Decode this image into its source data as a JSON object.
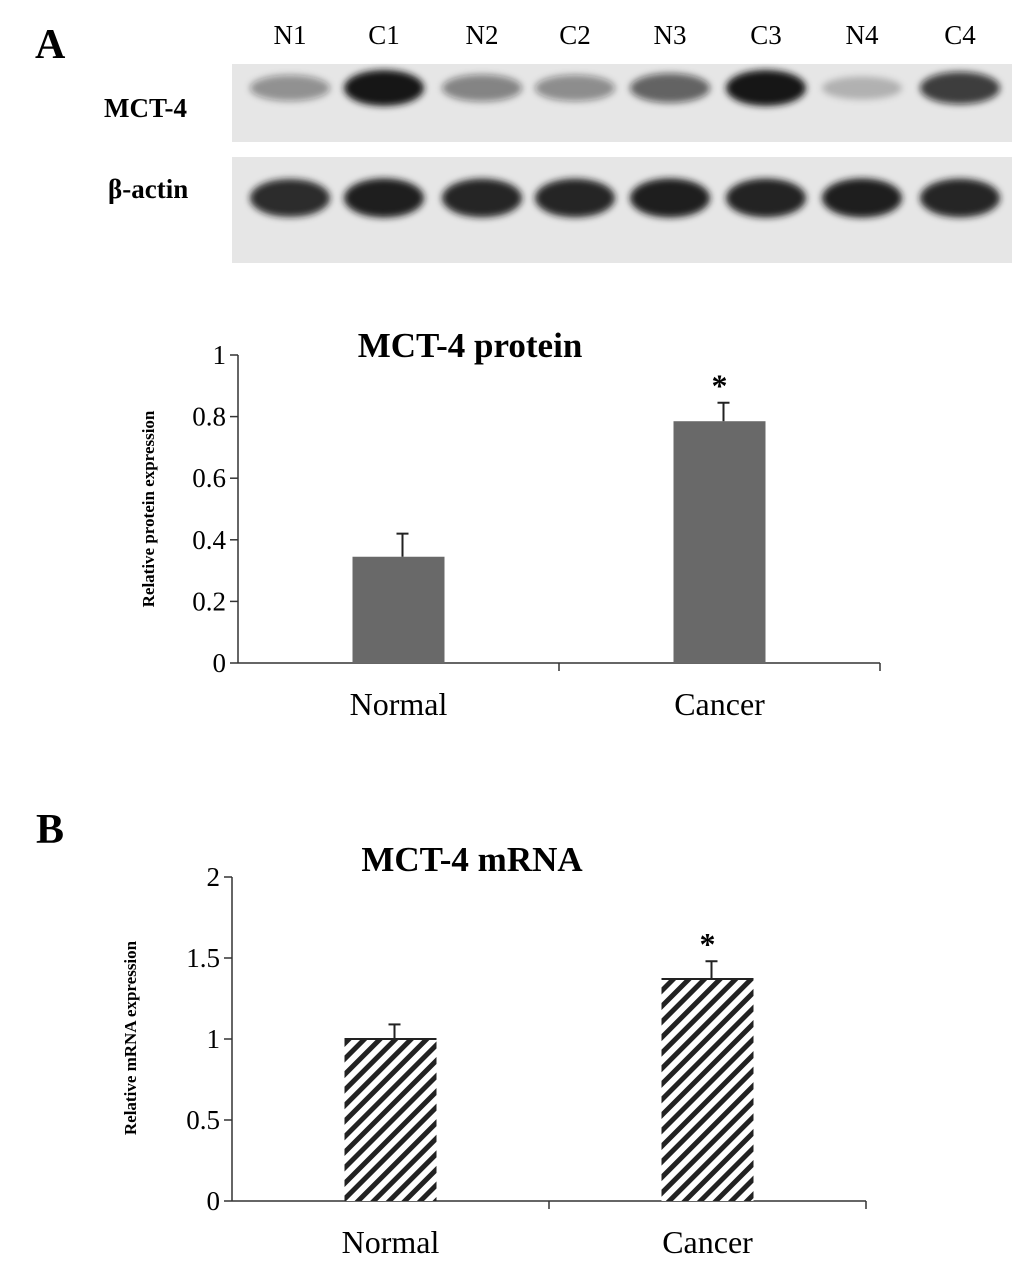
{
  "panels": [
    {
      "letter": "A"
    },
    {
      "letter": "B"
    }
  ],
  "blot": {
    "lanes": [
      "N1",
      "C1",
      "N2",
      "C2",
      "N3",
      "C3",
      "N4",
      "C4"
    ],
    "rows": [
      {
        "label": "MCT-4",
        "band_intensity": [
          0.3,
          1.0,
          0.38,
          0.33,
          0.55,
          1.0,
          0.1,
          0.75
        ]
      },
      {
        "label": "β-actin",
        "band_intensity": [
          0.88,
          0.95,
          0.92,
          0.92,
          0.95,
          0.93,
          0.95,
          0.92
        ]
      }
    ],
    "colors": {
      "background": "#e6e6e6",
      "band": "#141414"
    }
  },
  "chart_data": [
    {
      "type": "bar",
      "title": "MCT-4 protein",
      "categories": [
        "Normal",
        "Cancer"
      ],
      "values": [
        0.345,
        0.785
      ],
      "errors": [
        0.075,
        0.06
      ],
      "significance": [
        "",
        "*"
      ],
      "ylabel": "Relative protein expression",
      "ylim": [
        0,
        1
      ],
      "yticks": [
        0,
        0.2,
        0.4,
        0.6,
        0.8,
        1
      ],
      "ytick_labels": [
        "0",
        "0.2",
        "0.4",
        "0.6",
        "0.8",
        "1"
      ],
      "grid": false,
      "bar_fill": "solid",
      "bar_color": "#696969"
    },
    {
      "type": "bar",
      "title": "MCT-4 mRNA",
      "categories": [
        "Normal",
        "Cancer"
      ],
      "values": [
        1.0,
        1.37
      ],
      "errors": [
        0.09,
        0.11
      ],
      "significance": [
        "",
        "*"
      ],
      "ylabel": "Relative mRNA expression",
      "ylim": [
        0,
        2
      ],
      "yticks": [
        0,
        0.5,
        1,
        1.5,
        2
      ],
      "ytick_labels": [
        "0",
        "0.5",
        "1",
        "1.5",
        "2"
      ],
      "grid": false,
      "bar_fill": "diagonal-hatch",
      "bar_color": "#222222"
    }
  ]
}
